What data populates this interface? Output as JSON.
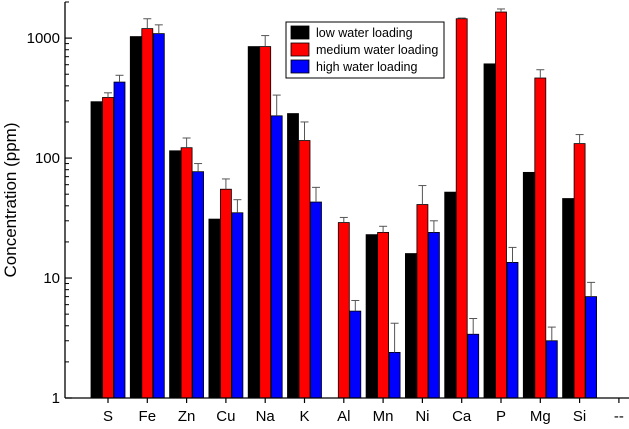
{
  "chart_data": {
    "type": "bar",
    "ylabel": "Concentration (ppm)",
    "yscale": "log",
    "ylim": [
      1,
      2000
    ],
    "ytick_values": [
      1,
      10,
      100,
      1000
    ],
    "ytick_labels": [
      "1",
      "10",
      "100",
      "1000"
    ],
    "categories": [
      "S",
      "Fe",
      "Zn",
      "Cu",
      "Na",
      "K",
      "Al",
      "Mn",
      "Ni",
      "Ca",
      "P",
      "Mg",
      "Si",
      "--"
    ],
    "legend_position": "top-right",
    "series": [
      {
        "name": "low water loading",
        "color": "#000000",
        "values": [
          295,
          1030,
          115,
          31,
          850,
          235,
          null,
          23,
          16,
          52,
          610,
          76,
          46,
          null
        ],
        "errors": [
          null,
          null,
          null,
          null,
          null,
          null,
          null,
          null,
          null,
          null,
          null,
          null,
          null,
          null
        ]
      },
      {
        "name": "medium water loading",
        "color": "#ff0000",
        "values": [
          320,
          1200,
          122,
          55,
          850,
          140,
          29,
          24,
          41,
          1450,
          1650,
          465,
          132,
          null
        ],
        "errors": [
          30,
          250,
          25,
          12,
          200,
          60,
          3,
          3,
          18,
          20,
          100,
          80,
          25,
          null
        ]
      },
      {
        "name": "high water loading",
        "color": "#0000ff",
        "values": [
          430,
          1090,
          77,
          35,
          225,
          43,
          5.3,
          2.4,
          24,
          3.4,
          13.5,
          3.0,
          7.0,
          null
        ],
        "errors": [
          60,
          200,
          13,
          10,
          110,
          14,
          1.2,
          1.8,
          6,
          1.2,
          4.5,
          0.9,
          2.2,
          null
        ]
      }
    ]
  }
}
